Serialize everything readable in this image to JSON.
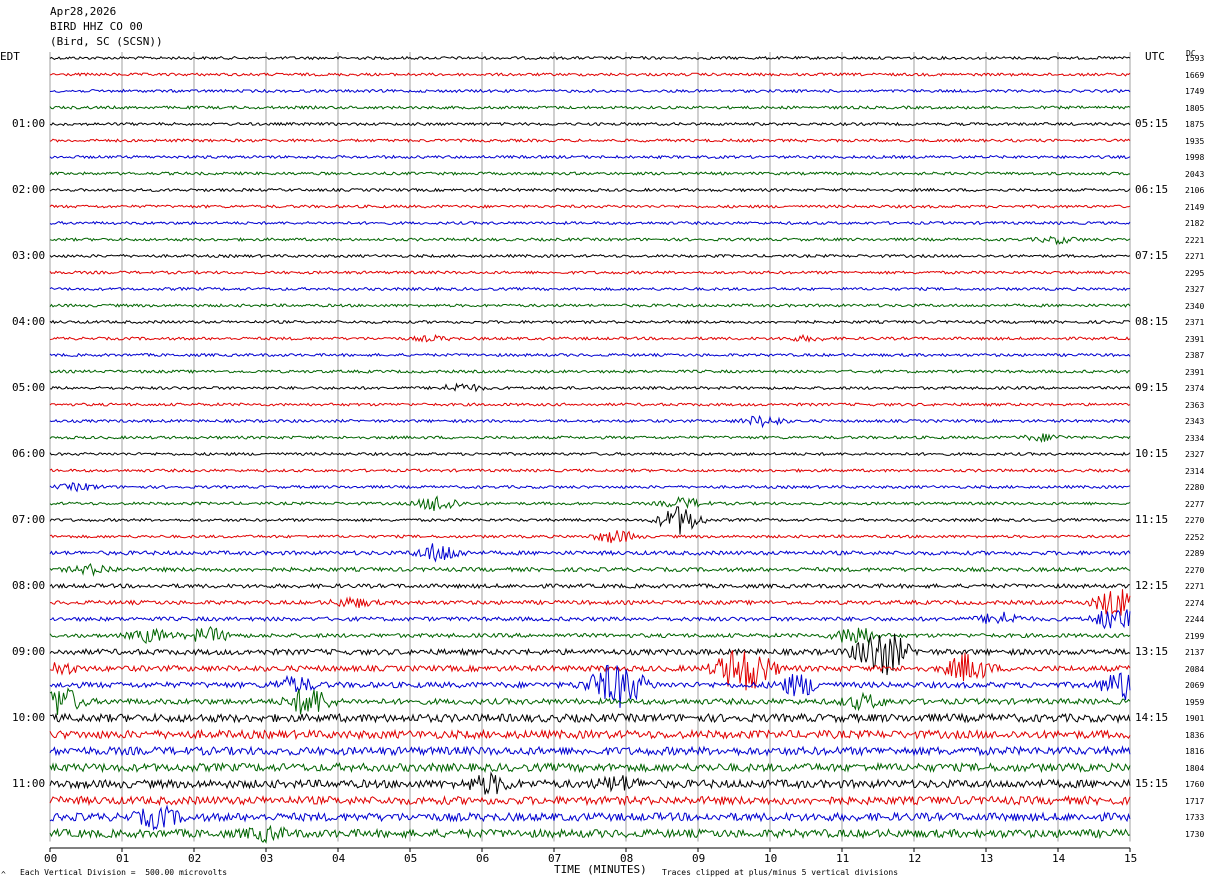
{
  "header": {
    "date": "Apr28,2026",
    "station": "BIRD HHZ CO 00",
    "location": "(Bird, SC (SCSN))"
  },
  "left_zone_label": "EDT",
  "right_zone_label": "UTC",
  "dc_label": "DC",
  "left_hour_labels": [
    "01:00",
    "02:00",
    "03:00",
    "04:00",
    "05:00",
    "06:00",
    "07:00",
    "08:00",
    "09:00",
    "10:00",
    "11:00"
  ],
  "right_hour_labels": [
    "05:15",
    "06:15",
    "07:15",
    "08:15",
    "09:15",
    "10:15",
    "11:15",
    "12:15",
    "13:15",
    "14:15",
    "15:15"
  ],
  "dc_values": [
    "1593",
    "1669",
    "1749",
    "1805",
    "1875",
    "1935",
    "1998",
    "2043",
    "2106",
    "2149",
    "2182",
    "2221",
    "2271",
    "2295",
    "2327",
    "2340",
    "2371",
    "2391",
    "2387",
    "2391",
    "2374",
    "2363",
    "2343",
    "2334",
    "2327",
    "2314",
    "2280",
    "2277",
    "2270",
    "2252",
    "2289",
    "2270",
    "2271",
    "2274",
    "2244",
    "2199",
    "2137",
    "2084",
    "2069",
    "1959",
    "1901",
    "1836",
    "1816",
    "1804",
    "1760",
    "1717",
    "1733",
    "1730"
  ],
  "footer": {
    "scale_note": "Each Vertical Division =  500.00 microvolts",
    "clip_note": "Traces clipped at plus/minus 5 vertical divisions",
    "corner_mark": "^"
  },
  "chart_data": {
    "type": "line",
    "xlabel": "TIME (MINUTES)",
    "x_ticks": [
      "00",
      "01",
      "02",
      "03",
      "04",
      "05",
      "06",
      "07",
      "08",
      "09",
      "10",
      "11",
      "12",
      "13",
      "14",
      "15"
    ],
    "xlim": [
      0,
      15
    ],
    "grid": true,
    "trace_count": 48,
    "trace_colors": [
      "#000000",
      "#e00000",
      "#0000d0",
      "#006400"
    ],
    "events": [
      {
        "trace": 11,
        "minute": 14.0,
        "amplitude": 3
      },
      {
        "trace": 17,
        "minute": 5.3,
        "amplitude": 2
      },
      {
        "trace": 17,
        "minute": 10.5,
        "amplitude": 2
      },
      {
        "trace": 20,
        "minute": 5.7,
        "amplitude": 4
      },
      {
        "trace": 22,
        "minute": 9.9,
        "amplitude": 5
      },
      {
        "trace": 23,
        "minute": 13.8,
        "amplitude": 3
      },
      {
        "trace": 26,
        "minute": 0.4,
        "amplitude": 3
      },
      {
        "trace": 27,
        "minute": 5.4,
        "amplitude": 8
      },
      {
        "trace": 27,
        "minute": 8.8,
        "amplitude": 5
      },
      {
        "trace": 28,
        "minute": 8.75,
        "amplitude": 14
      },
      {
        "trace": 29,
        "minute": 7.85,
        "amplitude": 6
      },
      {
        "trace": 30,
        "minute": 5.4,
        "amplitude": 9
      },
      {
        "trace": 31,
        "minute": 0.6,
        "amplitude": 4
      },
      {
        "trace": 33,
        "minute": 4.2,
        "amplitude": 4
      },
      {
        "trace": 33,
        "minute": 14.8,
        "amplitude": 14
      },
      {
        "trace": 34,
        "minute": 13.2,
        "amplitude": 6
      },
      {
        "trace": 34,
        "minute": 14.8,
        "amplitude": 12
      },
      {
        "trace": 35,
        "minute": 1.4,
        "amplitude": 6
      },
      {
        "trace": 35,
        "minute": 2.2,
        "amplitude": 7
      },
      {
        "trace": 35,
        "minute": 11.2,
        "amplitude": 10
      },
      {
        "trace": 36,
        "minute": 11.4,
        "amplitude": 12
      },
      {
        "trace": 36,
        "minute": 11.65,
        "amplitude": 16
      },
      {
        "trace": 37,
        "minute": 9.5,
        "amplitude": 16
      },
      {
        "trace": 37,
        "minute": 9.8,
        "amplitude": 14
      },
      {
        "trace": 37,
        "minute": 12.75,
        "amplitude": 14
      },
      {
        "trace": 37,
        "minute": 0.1,
        "amplitude": 5
      },
      {
        "trace": 38,
        "minute": 7.7,
        "amplitude": 12
      },
      {
        "trace": 38,
        "minute": 8.0,
        "amplitude": 16
      },
      {
        "trace": 38,
        "minute": 10.4,
        "amplitude": 10
      },
      {
        "trace": 38,
        "minute": 14.9,
        "amplitude": 14
      },
      {
        "trace": 38,
        "minute": 3.4,
        "amplitude": 7
      },
      {
        "trace": 39,
        "minute": 3.6,
        "amplitude": 14
      },
      {
        "trace": 39,
        "minute": 0.15,
        "amplitude": 14
      },
      {
        "trace": 39,
        "minute": 11.3,
        "amplitude": 6
      },
      {
        "trace": 44,
        "minute": 6.1,
        "amplitude": 8
      },
      {
        "trace": 44,
        "minute": 7.9,
        "amplitude": 6
      },
      {
        "trace": 46,
        "minute": 1.5,
        "amplitude": 9
      },
      {
        "trace": 47,
        "minute": 3.0,
        "amplitude": 5
      }
    ]
  }
}
